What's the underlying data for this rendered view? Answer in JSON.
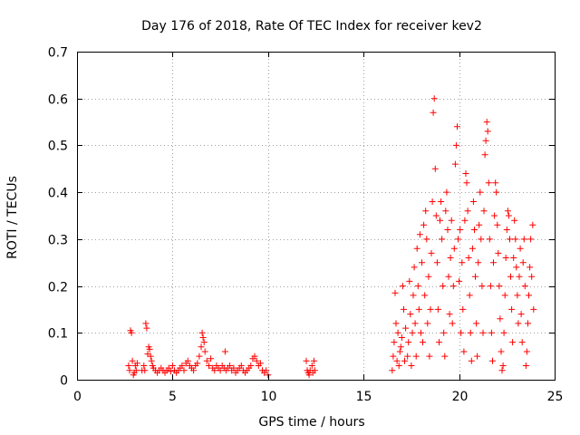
{
  "chart_data": {
    "type": "scatter",
    "title": "Day 176 of 2018, Rate Of TEC Index for receiver kev2",
    "xlabel": "GPS time / hours",
    "ylabel": "ROTI / TECUs",
    "xlim": [
      0,
      25
    ],
    "ylim": [
      0,
      0.7
    ],
    "xticks": [
      0,
      5,
      10,
      15,
      20,
      25
    ],
    "xtick_labels": [
      "0",
      "5",
      "10",
      "15",
      "20",
      "25"
    ],
    "yticks": [
      0,
      0.1,
      0.2,
      0.3,
      0.4,
      0.5,
      0.6,
      0.7
    ],
    "ytick_labels": [
      "0",
      "0.1",
      "0.2",
      "0.3",
      "0.4",
      "0.5",
      "0.6",
      "0.7"
    ],
    "grid": true,
    "marker": "+",
    "color": "#ff0000",
    "series": [
      {
        "name": "ROTI",
        "points": [
          [
            2.7,
            0.03
          ],
          [
            2.75,
            0.02
          ],
          [
            2.8,
            0.105
          ],
          [
            2.85,
            0.1
          ],
          [
            2.9,
            0.04
          ],
          [
            2.95,
            0.01
          ],
          [
            3.0,
            0.015
          ],
          [
            3.05,
            0.03
          ],
          [
            3.1,
            0.02
          ],
          [
            3.15,
            0.035
          ],
          [
            3.4,
            0.02
          ],
          [
            3.5,
            0.03
          ],
          [
            3.55,
            0.02
          ],
          [
            3.6,
            0.12
          ],
          [
            3.65,
            0.11
          ],
          [
            3.7,
            0.055
          ],
          [
            3.75,
            0.07
          ],
          [
            3.8,
            0.065
          ],
          [
            3.85,
            0.05
          ],
          [
            3.9,
            0.04
          ],
          [
            3.95,
            0.03
          ],
          [
            4.0,
            0.025
          ],
          [
            4.1,
            0.02
          ],
          [
            4.2,
            0.015
          ],
          [
            4.3,
            0.02
          ],
          [
            4.4,
            0.025
          ],
          [
            4.5,
            0.02
          ],
          [
            4.6,
            0.015
          ],
          [
            4.7,
            0.02
          ],
          [
            4.8,
            0.025
          ],
          [
            4.9,
            0.018
          ],
          [
            5.0,
            0.03
          ],
          [
            5.1,
            0.02
          ],
          [
            5.2,
            0.015
          ],
          [
            5.3,
            0.02
          ],
          [
            5.4,
            0.025
          ],
          [
            5.5,
            0.03
          ],
          [
            5.6,
            0.02
          ],
          [
            5.7,
            0.035
          ],
          [
            5.8,
            0.04
          ],
          [
            5.9,
            0.03
          ],
          [
            6.0,
            0.025
          ],
          [
            6.1,
            0.02
          ],
          [
            6.2,
            0.03
          ],
          [
            6.3,
            0.035
          ],
          [
            6.4,
            0.05
          ],
          [
            6.5,
            0.07
          ],
          [
            6.55,
            0.1
          ],
          [
            6.6,
            0.09
          ],
          [
            6.65,
            0.08
          ],
          [
            6.7,
            0.06
          ],
          [
            6.8,
            0.04
          ],
          [
            6.9,
            0.03
          ],
          [
            7.0,
            0.045
          ],
          [
            7.1,
            0.025
          ],
          [
            7.2,
            0.02
          ],
          [
            7.3,
            0.03
          ],
          [
            7.4,
            0.025
          ],
          [
            7.5,
            0.02
          ],
          [
            7.6,
            0.03
          ],
          [
            7.7,
            0.025
          ],
          [
            7.75,
            0.06
          ],
          [
            7.8,
            0.02
          ],
          [
            7.9,
            0.025
          ],
          [
            8.0,
            0.03
          ],
          [
            8.1,
            0.02
          ],
          [
            8.2,
            0.025
          ],
          [
            8.3,
            0.015
          ],
          [
            8.4,
            0.02
          ],
          [
            8.5,
            0.025
          ],
          [
            8.6,
            0.03
          ],
          [
            8.7,
            0.02
          ],
          [
            8.8,
            0.015
          ],
          [
            8.9,
            0.02
          ],
          [
            9.0,
            0.025
          ],
          [
            9.1,
            0.03
          ],
          [
            9.2,
            0.045
          ],
          [
            9.3,
            0.05
          ],
          [
            9.4,
            0.04
          ],
          [
            9.5,
            0.03
          ],
          [
            9.6,
            0.035
          ],
          [
            9.7,
            0.02
          ],
          [
            9.8,
            0.015
          ],
          [
            9.9,
            0.02
          ],
          [
            10.0,
            0.01
          ],
          [
            12.0,
            0.04
          ],
          [
            12.05,
            0.02
          ],
          [
            12.1,
            0.015
          ],
          [
            12.15,
            0.01
          ],
          [
            12.2,
            0.02
          ],
          [
            12.3,
            0.03
          ],
          [
            12.35,
            0.015
          ],
          [
            12.4,
            0.04
          ],
          [
            12.45,
            0.02
          ],
          [
            16.5,
            0.02
          ],
          [
            16.55,
            0.05
          ],
          [
            16.6,
            0.08
          ],
          [
            16.65,
            0.185
          ],
          [
            16.7,
            0.12
          ],
          [
            16.75,
            0.04
          ],
          [
            16.8,
            0.1
          ],
          [
            16.85,
            0.03
          ],
          [
            16.9,
            0.06
          ],
          [
            16.95,
            0.07
          ],
          [
            17.0,
            0.09
          ],
          [
            17.05,
            0.2
          ],
          [
            17.1,
            0.15
          ],
          [
            17.15,
            0.04
          ],
          [
            17.2,
            0.11
          ],
          [
            17.3,
            0.05
          ],
          [
            17.35,
            0.08
          ],
          [
            17.4,
            0.21
          ],
          [
            17.45,
            0.14
          ],
          [
            17.5,
            0.03
          ],
          [
            17.55,
            0.1
          ],
          [
            17.6,
            0.18
          ],
          [
            17.65,
            0.24
          ],
          [
            17.7,
            0.12
          ],
          [
            17.75,
            0.05
          ],
          [
            17.8,
            0.28
          ],
          [
            17.85,
            0.2
          ],
          [
            17.9,
            0.15
          ],
          [
            17.95,
            0.31
          ],
          [
            18.0,
            0.1
          ],
          [
            18.05,
            0.25
          ],
          [
            18.1,
            0.08
          ],
          [
            18.15,
            0.33
          ],
          [
            18.2,
            0.18
          ],
          [
            18.25,
            0.36
          ],
          [
            18.3,
            0.3
          ],
          [
            18.35,
            0.12
          ],
          [
            18.4,
            0.22
          ],
          [
            18.45,
            0.05
          ],
          [
            18.5,
            0.15
          ],
          [
            18.55,
            0.27
          ],
          [
            18.6,
            0.38
          ],
          [
            18.65,
            0.57
          ],
          [
            18.7,
            0.6
          ],
          [
            18.75,
            0.45
          ],
          [
            18.8,
            0.35
          ],
          [
            18.85,
            0.25
          ],
          [
            18.9,
            0.15
          ],
          [
            18.95,
            0.08
          ],
          [
            19.0,
            0.34
          ],
          [
            19.05,
            0.38
          ],
          [
            19.1,
            0.3
          ],
          [
            19.15,
            0.2
          ],
          [
            19.2,
            0.1
          ],
          [
            19.25,
            0.05
          ],
          [
            19.3,
            0.36
          ],
          [
            19.35,
            0.4
          ],
          [
            19.4,
            0.32
          ],
          [
            19.45,
            0.22
          ],
          [
            19.5,
            0.14
          ],
          [
            19.55,
            0.26
          ],
          [
            19.6,
            0.34
          ],
          [
            19.65,
            0.12
          ],
          [
            19.7,
            0.2
          ],
          [
            19.75,
            0.28
          ],
          [
            19.8,
            0.46
          ],
          [
            19.85,
            0.5
          ],
          [
            19.9,
            0.54
          ],
          [
            19.95,
            0.3
          ],
          [
            20.0,
            0.21
          ],
          [
            20.05,
            0.32
          ],
          [
            20.1,
            0.1
          ],
          [
            20.15,
            0.25
          ],
          [
            20.2,
            0.15
          ],
          [
            20.25,
            0.06
          ],
          [
            20.3,
            0.34
          ],
          [
            20.35,
            0.44
          ],
          [
            20.4,
            0.42
          ],
          [
            20.45,
            0.36
          ],
          [
            20.5,
            0.26
          ],
          [
            20.55,
            0.18
          ],
          [
            20.6,
            0.1
          ],
          [
            20.65,
            0.04
          ],
          [
            20.7,
            0.28
          ],
          [
            20.75,
            0.38
          ],
          [
            20.8,
            0.32
          ],
          [
            20.85,
            0.22
          ],
          [
            20.9,
            0.12
          ],
          [
            20.95,
            0.05
          ],
          [
            21.0,
            0.25
          ],
          [
            21.05,
            0.33
          ],
          [
            21.1,
            0.4
          ],
          [
            21.15,
            0.3
          ],
          [
            21.2,
            0.2
          ],
          [
            21.25,
            0.1
          ],
          [
            21.3,
            0.36
          ],
          [
            21.35,
            0.48
          ],
          [
            21.4,
            0.51
          ],
          [
            21.45,
            0.55
          ],
          [
            21.5,
            0.53
          ],
          [
            21.55,
            0.42
          ],
          [
            21.6,
            0.3
          ],
          [
            21.65,
            0.2
          ],
          [
            21.7,
            0.1
          ],
          [
            21.75,
            0.04
          ],
          [
            21.8,
            0.25
          ],
          [
            21.85,
            0.35
          ],
          [
            21.9,
            0.42
          ],
          [
            21.95,
            0.4
          ],
          [
            22.0,
            0.33
          ],
          [
            22.05,
            0.27
          ],
          [
            22.1,
            0.2
          ],
          [
            22.15,
            0.13
          ],
          [
            22.2,
            0.06
          ],
          [
            22.25,
            0.02
          ],
          [
            22.3,
            0.03
          ],
          [
            22.35,
            0.1
          ],
          [
            22.4,
            0.18
          ],
          [
            22.45,
            0.26
          ],
          [
            22.5,
            0.32
          ],
          [
            22.55,
            0.36
          ],
          [
            22.6,
            0.35
          ],
          [
            22.65,
            0.3
          ],
          [
            22.7,
            0.22
          ],
          [
            22.75,
            0.15
          ],
          [
            22.8,
            0.08
          ],
          [
            22.85,
            0.26
          ],
          [
            22.9,
            0.34
          ],
          [
            22.95,
            0.3
          ],
          [
            23.0,
            0.24
          ],
          [
            23.05,
            0.18
          ],
          [
            23.1,
            0.12
          ],
          [
            23.15,
            0.22
          ],
          [
            23.2,
            0.28
          ],
          [
            23.25,
            0.14
          ],
          [
            23.3,
            0.08
          ],
          [
            23.35,
            0.25
          ],
          [
            23.4,
            0.3
          ],
          [
            23.45,
            0.2
          ],
          [
            23.5,
            0.03
          ],
          [
            23.55,
            0.06
          ],
          [
            23.6,
            0.12
          ],
          [
            23.65,
            0.18
          ],
          [
            23.7,
            0.24
          ],
          [
            23.75,
            0.3
          ],
          [
            23.8,
            0.22
          ],
          [
            23.85,
            0.33
          ],
          [
            23.9,
            0.15
          ]
        ]
      }
    ]
  }
}
